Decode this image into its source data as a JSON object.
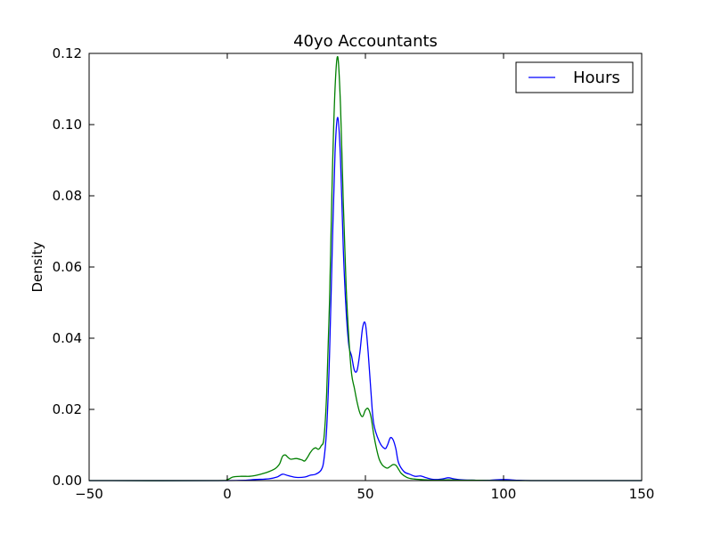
{
  "chart_data": {
    "type": "line",
    "title": "40yo Accountants",
    "xlabel": "",
    "ylabel": "Density",
    "xlim": [
      -50,
      150
    ],
    "ylim": [
      0,
      0.12
    ],
    "xticks": [
      -50,
      0,
      50,
      100,
      150
    ],
    "yticks": [
      0.0,
      0.02,
      0.04,
      0.06,
      0.08,
      0.1,
      0.12
    ],
    "xtick_labels": [
      "−50",
      "0",
      "50",
      "100",
      "150"
    ],
    "ytick_labels": [
      "0.00",
      "0.02",
      "0.04",
      "0.06",
      "0.08",
      "0.10",
      "0.12"
    ],
    "grid": false,
    "legend": {
      "placement": "top-right",
      "entries": [
        "Hours"
      ]
    },
    "series": [
      {
        "name": "Hours",
        "color": "#0000ff",
        "x": [
          -50,
          0,
          10,
          15,
          18,
          20,
          22,
          25,
          28,
          30,
          32,
          34,
          35,
          36,
          37,
          38,
          39,
          40,
          41,
          42,
          43,
          44,
          45,
          46,
          47,
          48,
          49,
          50,
          51,
          52,
          53,
          55,
          57,
          58,
          59,
          60,
          61,
          62,
          64,
          66,
          68,
          70,
          72,
          75,
          78,
          80,
          82,
          85,
          90,
          95,
          100,
          105,
          110,
          120,
          150
        ],
        "y": [
          0,
          0,
          0.0003,
          0.0005,
          0.001,
          0.0018,
          0.0014,
          0.0009,
          0.001,
          0.0015,
          0.0018,
          0.003,
          0.006,
          0.015,
          0.035,
          0.065,
          0.092,
          0.102,
          0.09,
          0.065,
          0.048,
          0.038,
          0.035,
          0.031,
          0.031,
          0.036,
          0.043,
          0.044,
          0.036,
          0.025,
          0.016,
          0.011,
          0.009,
          0.01,
          0.012,
          0.0115,
          0.009,
          0.005,
          0.0025,
          0.0018,
          0.0012,
          0.0013,
          0.0008,
          0.0003,
          0.0005,
          0.0008,
          0.0005,
          0.0002,
          0.0001,
          0.0001,
          0.0003,
          0.0001,
          0,
          0,
          0
        ]
      },
      {
        "color": "#007f00",
        "x": [
          -50,
          -5,
          0,
          2,
          5,
          8,
          10,
          13,
          15,
          17,
          18,
          19,
          20,
          21,
          22,
          23,
          25,
          27,
          28,
          29,
          30,
          31,
          32,
          33,
          34,
          35,
          36,
          37,
          38,
          39,
          40,
          41,
          42,
          43,
          44,
          45,
          46,
          47,
          48,
          49,
          50,
          51,
          52,
          53,
          54,
          55,
          56,
          57,
          58,
          59,
          60,
          61,
          62,
          63,
          65,
          67,
          70,
          72,
          75,
          80,
          85,
          90,
          100,
          110,
          150
        ],
        "y": [
          0,
          0,
          0.0003,
          0.001,
          0.0012,
          0.0012,
          0.0014,
          0.002,
          0.0025,
          0.0032,
          0.0038,
          0.0048,
          0.0068,
          0.0072,
          0.0065,
          0.006,
          0.0062,
          0.0058,
          0.0055,
          0.0065,
          0.0078,
          0.0088,
          0.0092,
          0.0088,
          0.0098,
          0.012,
          0.025,
          0.05,
          0.085,
          0.11,
          0.119,
          0.105,
          0.078,
          0.055,
          0.04,
          0.03,
          0.026,
          0.022,
          0.019,
          0.018,
          0.0198,
          0.0202,
          0.018,
          0.013,
          0.009,
          0.006,
          0.0045,
          0.0038,
          0.0035,
          0.004,
          0.0045,
          0.0043,
          0.0032,
          0.002,
          0.0009,
          0.0005,
          0.0003,
          0.0002,
          0.0001,
          0.0002,
          0.0001,
          0.0001,
          0,
          0,
          0
        ]
      }
    ]
  }
}
